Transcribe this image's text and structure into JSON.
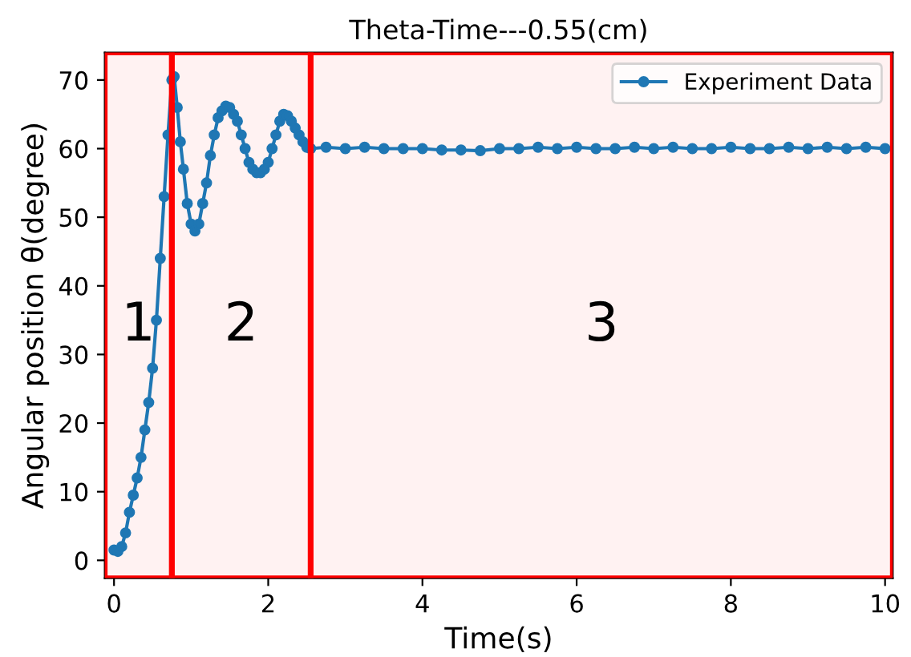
{
  "chart_data": {
    "type": "line",
    "title": "Theta-Time---0.55(cm)",
    "xlabel": "Time(s)",
    "ylabel": "Angular position θ(degree)",
    "xlim": [
      -0.12,
      10.1
    ],
    "xticks": [
      0,
      2,
      4,
      6,
      8,
      10
    ],
    "ylim": [
      -2.6,
      74
    ],
    "yticks": [
      0,
      10,
      20,
      30,
      40,
      50,
      60,
      70
    ],
    "series": [
      {
        "name": "Experiment Data",
        "color": "#1f77b4",
        "x": [
          0,
          0.05,
          0.1,
          0.15,
          0.2,
          0.25,
          0.3,
          0.35,
          0.4,
          0.45,
          0.5,
          0.55,
          0.6,
          0.65,
          0.7,
          0.75,
          0.78,
          0.82,
          0.86,
          0.9,
          0.95,
          1.0,
          1.05,
          1.1,
          1.15,
          1.2,
          1.25,
          1.3,
          1.35,
          1.4,
          1.45,
          1.5,
          1.55,
          1.6,
          1.65,
          1.7,
          1.75,
          1.8,
          1.85,
          1.9,
          1.95,
          2.0,
          2.05,
          2.1,
          2.15,
          2.2,
          2.25,
          2.3,
          2.35,
          2.4,
          2.45,
          2.5,
          2.55,
          2.75,
          3.0,
          3.25,
          3.5,
          3.75,
          4.0,
          4.25,
          4.5,
          4.75,
          5.0,
          5.25,
          5.5,
          5.75,
          6.0,
          6.25,
          6.5,
          6.75,
          7.0,
          7.25,
          7.5,
          7.75,
          8.0,
          8.25,
          8.5,
          8.75,
          9.0,
          9.25,
          9.5,
          9.75,
          10.0
        ],
        "values": [
          1.5,
          1.3,
          2,
          4,
          7,
          9.5,
          12,
          15,
          19,
          23,
          28,
          35,
          44,
          53,
          62,
          70,
          70.5,
          66,
          61,
          57,
          52,
          49,
          48,
          49,
          52,
          55,
          59,
          62,
          64.5,
          65.5,
          66.2,
          66,
          65,
          64,
          62,
          60,
          58,
          57,
          56.5,
          56.5,
          57,
          58,
          60,
          62,
          64,
          65,
          64.8,
          64,
          63,
          62,
          61,
          60.2,
          60,
          60.2,
          60,
          60.2,
          60,
          60,
          60,
          59.8,
          59.8,
          59.7,
          60,
          60,
          60.2,
          60,
          60.2,
          60,
          60,
          60.2,
          60,
          60.2,
          60,
          60,
          60.2,
          60,
          60,
          60.2,
          60,
          60.2,
          60,
          60.2,
          60
        ]
      }
    ],
    "bands": [
      {
        "axis": "x",
        "from": -0.12,
        "to": 0.75,
        "label": "1",
        "color": "#ff0000"
      },
      {
        "axis": "x",
        "from": 0.75,
        "to": 2.55,
        "label": "2",
        "color": "#ff0000"
      },
      {
        "axis": "x",
        "from": 2.55,
        "to": 10.1,
        "label": "3",
        "color": "#ff0000"
      }
    ],
    "marker": "circle",
    "line_style": "solid",
    "legend": "top right",
    "grid": false
  }
}
